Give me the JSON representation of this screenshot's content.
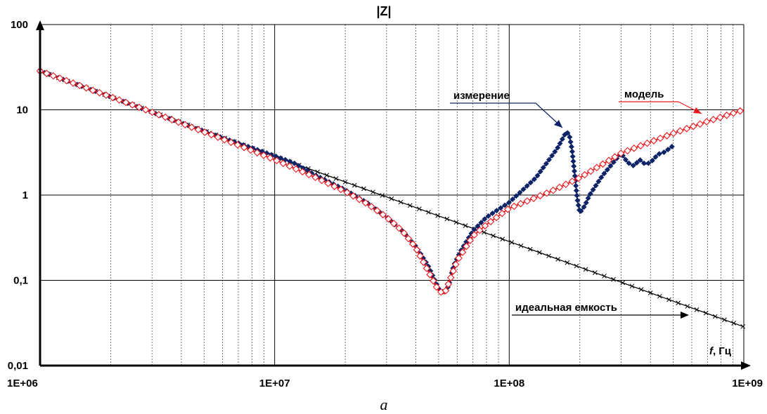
{
  "chart_data": {
    "type": "line",
    "title": "|Z|",
    "caption": "a",
    "xlabel_italic": "f",
    "xlabel_unit": ", Гц",
    "x_scale": "log",
    "y_scale": "log",
    "xlim": [
      1000000,
      1000000000
    ],
    "ylim": [
      0.01,
      100
    ],
    "x_major_ticks": [
      1000000,
      10000000,
      100000000,
      1000000000
    ],
    "x_tick_labels": [
      "1E+06",
      "1E+07",
      "1E+08",
      "1E+09"
    ],
    "y_major_ticks": [
      0.01,
      0.1,
      1,
      10,
      100
    ],
    "y_tick_labels": [
      "0,01",
      "0,1",
      "1",
      "10",
      "100"
    ],
    "grid": true,
    "series": [
      {
        "name": "идеальная емкость",
        "color": "#000000",
        "marker": "x",
        "x": [
          1000000,
          1500000,
          2000000,
          3000000,
          5000000,
          7000000,
          10000000,
          15000000,
          20000000,
          30000000,
          50000000,
          70000000,
          100000000,
          150000000,
          200000000,
          300000000,
          500000000,
          700000000,
          1000000000
        ],
        "y": [
          28.5,
          19,
          14.25,
          9.5,
          5.7,
          4.07,
          2.85,
          1.9,
          1.425,
          0.95,
          0.57,
          0.407,
          0.285,
          0.19,
          0.1425,
          0.095,
          0.057,
          0.0407,
          0.0285
        ]
      },
      {
        "name": "модель",
        "color": "#e8191e",
        "marker": "diamond-open",
        "x": [
          1000000,
          2000000,
          3000000,
          5000000,
          7000000,
          10000000,
          15000000,
          20000000,
          25000000,
          30000000,
          35000000,
          40000000,
          45000000,
          50000000,
          53000000,
          55000000,
          60000000,
          70000000,
          80000000,
          100000000,
          150000000,
          200000000,
          300000000,
          500000000,
          700000000,
          1000000000
        ],
        "y": [
          28.5,
          14.2,
          9.4,
          5.5,
          3.85,
          2.6,
          1.6,
          1.1,
          0.78,
          0.55,
          0.38,
          0.24,
          0.13,
          0.075,
          0.07,
          0.09,
          0.17,
          0.33,
          0.45,
          0.7,
          1.1,
          1.6,
          3.1,
          5.3,
          7.3,
          10
        ]
      },
      {
        "name": "измерение",
        "color": "#0d2468",
        "marker": "diamond-filled",
        "x": [
          1000000,
          2000000,
          3500000,
          6000000,
          9000000,
          12000000,
          15000000,
          20000000,
          25000000,
          30000000,
          35000000,
          40000000,
          45000000,
          50000000,
          53000000,
          55000000,
          58000000,
          62000000,
          70000000,
          80000000,
          100000000,
          130000000,
          160000000,
          175000000,
          180000000,
          185000000,
          190000000,
          195000000,
          200000000,
          210000000,
          220000000,
          250000000,
          300000000,
          320000000,
          340000000,
          360000000,
          380000000,
          400000000,
          430000000,
          460000000,
          500000000
        ],
        "y": [
          28.5,
          14.2,
          8.0,
          4.7,
          3.2,
          2.4,
          1.7,
          1.15,
          0.8,
          0.55,
          0.38,
          0.25,
          0.15,
          0.08,
          0.07,
          0.085,
          0.15,
          0.22,
          0.38,
          0.55,
          0.82,
          1.6,
          3.5,
          5.5,
          5.2,
          3.5,
          1.8,
          0.9,
          0.62,
          0.75,
          1.0,
          1.7,
          3.1,
          2.4,
          2.2,
          2.6,
          2.3,
          2.4,
          3.0,
          3.2,
          3.8
        ]
      }
    ],
    "annotations": [
      {
        "text": "измерение",
        "series": "измерение"
      },
      {
        "text": "модель",
        "series": "модель"
      },
      {
        "text": "идеальная емкость",
        "series": "идеальная емкость"
      }
    ]
  }
}
